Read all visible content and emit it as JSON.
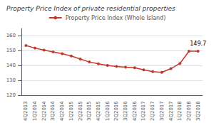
{
  "chart_data": {
    "type": "line",
    "title": "Property Price Index of private residential properties",
    "categories": [
      "4Q2013",
      "1Q2014",
      "2Q2014",
      "3Q2014",
      "4Q2014",
      "1Q2015",
      "2Q2015",
      "3Q2015",
      "4Q2015",
      "1Q2016",
      "2Q2016",
      "3Q2016",
      "4Q2016",
      "1Q2017",
      "2Q2017",
      "3Q2017",
      "4Q2017",
      "1Q2018",
      "2Q2018",
      "3Q2018"
    ],
    "series": [
      {
        "name": "Property Price Index (Whole Island)",
        "color": "#c0392b",
        "marker": "circle",
        "values": [
          153.5,
          151.8,
          150.4,
          149.2,
          148.0,
          146.5,
          144.5,
          142.5,
          141.2,
          140.2,
          139.5,
          139.0,
          138.6,
          137.2,
          136.0,
          135.5,
          138.0,
          141.5,
          149.7,
          149.7
        ]
      }
    ],
    "annotations": [
      {
        "text": "149.7",
        "x": "3Q2018",
        "y": 149.7
      }
    ],
    "ylim": [
      120,
      165
    ],
    "yticks": [
      120,
      130,
      140,
      150,
      160
    ],
    "grid": true,
    "legend": "top"
  }
}
